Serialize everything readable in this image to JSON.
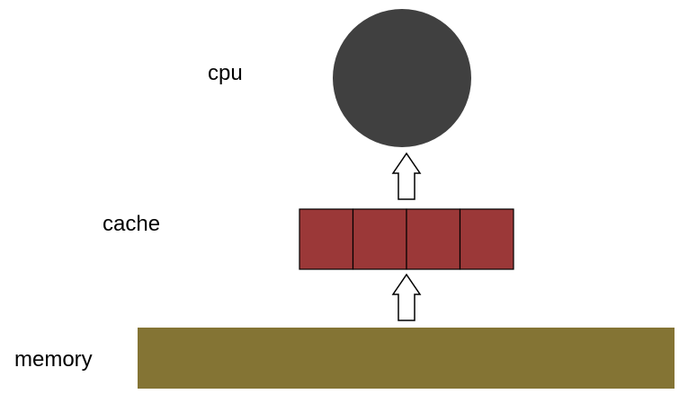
{
  "labels": {
    "cpu": "cpu",
    "cache": "cache",
    "memory": "memory"
  },
  "cache": {
    "block_count": 4
  },
  "colors": {
    "cpu": "#404040",
    "cache": "#9b3838",
    "memory": "#847434",
    "arrow_fill": "#ffffff",
    "arrow_stroke": "#000000"
  }
}
